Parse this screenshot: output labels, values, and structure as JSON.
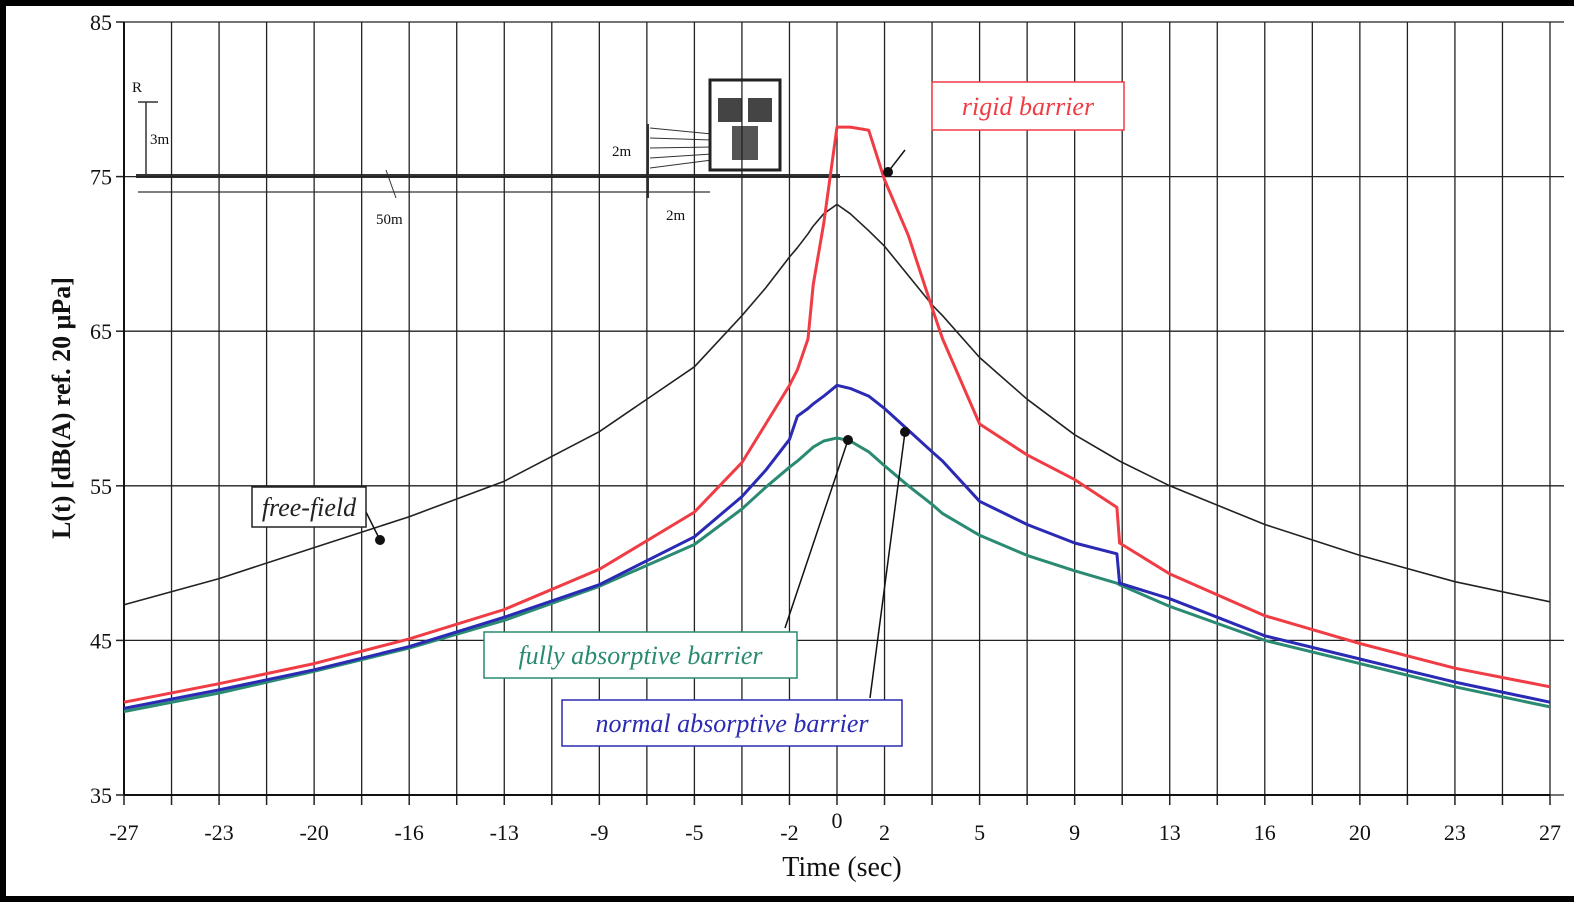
{
  "chart_data": {
    "type": "line",
    "x_label": "Time (sec)",
    "y_label": "L(t) [dB(A) ref. 20 μPa]",
    "xlim": [
      -27,
      27
    ],
    "ylim": [
      35,
      85
    ],
    "xticks": [
      -27,
      {
        "value": -23.4,
        "label": "-23"
      },
      {
        "value": -19.8,
        "label": "-20"
      },
      {
        "value": -16.2,
        "label": "-16"
      },
      {
        "value": -12.6,
        "label": "-13"
      },
      -9,
      {
        "value": -5.4,
        "label": "-5"
      },
      {
        "value": -1.8,
        "label": "-2"
      },
      0,
      {
        "value": 1.8,
        "label": "2"
      },
      {
        "value": 5.4,
        "label": "5"
      },
      9,
      {
        "value": 12.6,
        "label": "13"
      },
      {
        "value": 16.2,
        "label": "16"
      },
      {
        "value": 19.8,
        "label": "20"
      },
      {
        "value": 23.4,
        "label": "23"
      },
      27
    ],
    "x_minor_ticks": [
      -25.2,
      -21.6,
      -18,
      -14.4,
      -10.8,
      -7.2,
      -3.6,
      3.6,
      7.2,
      10.8,
      14.4,
      18,
      21.6,
      25.2
    ],
    "yticks": [
      35,
      45,
      55,
      65,
      75,
      85
    ],
    "grid": true,
    "x": [
      -27,
      -23.4,
      -19.8,
      -16.2,
      -12.6,
      -9,
      -5.4,
      -3.6,
      -2.7,
      -1.8,
      -1.5,
      -1.1,
      -0.9,
      -0.5,
      0,
      0.5,
      1.2,
      1.8,
      2.7,
      3.6,
      4.0,
      5.4,
      7.2,
      9,
      10.6,
      10.7,
      12.6,
      16.2,
      19.8,
      23.4,
      27
    ],
    "series": [
      {
        "name": "free-field",
        "color": "#222222",
        "values": [
          47.3,
          49,
          51,
          53,
          55.3,
          58.5,
          62.7,
          66,
          67.8,
          69.8,
          70.4,
          71.3,
          71.8,
          72.6,
          73.2,
          72.6,
          71.5,
          70.5,
          68.6,
          66.7,
          66,
          63.3,
          60.6,
          58.3,
          56.7,
          56.6,
          55,
          52.5,
          50.5,
          48.8,
          47.5
        ]
      },
      {
        "name": "rigid barrier",
        "color": "#f03c44",
        "values": [
          41,
          42.2,
          43.5,
          45.1,
          47,
          49.6,
          53.3,
          56.5,
          59,
          61.5,
          62.5,
          64.5,
          68,
          72,
          78.2,
          78.2,
          78,
          74.8,
          71.2,
          66.5,
          64.5,
          59,
          57,
          55.4,
          53.6,
          51.3,
          49.3,
          46.6,
          44.8,
          43.2,
          42
        ]
      },
      {
        "name": "fully absorptive barrier",
        "color": "#2a8a72",
        "values": [
          40.4,
          41.6,
          43,
          44.5,
          46.3,
          48.5,
          51.2,
          53.5,
          54.9,
          56.2,
          56.6,
          57.2,
          57.5,
          57.9,
          58.1,
          57.9,
          57.2,
          56.3,
          55,
          53.8,
          53.2,
          51.8,
          50.5,
          49.5,
          48.7,
          48.6,
          47.2,
          45,
          43.5,
          42,
          40.7
        ]
      },
      {
        "name": "normal absorptive barrier",
        "color": "#2a2ab4",
        "values": [
          40.6,
          41.8,
          43.1,
          44.6,
          46.5,
          48.6,
          51.7,
          54.3,
          56,
          58,
          59.5,
          60,
          60.3,
          60.8,
          61.5,
          61.3,
          60.8,
          60,
          58.6,
          57.2,
          56.6,
          54,
          52.5,
          51.3,
          50.6,
          48.7,
          47.7,
          45.3,
          43.8,
          42.3,
          41
        ]
      }
    ],
    "inset_labels": [
      "R",
      "3m",
      "2m",
      "50m",
      "2m"
    ]
  }
}
